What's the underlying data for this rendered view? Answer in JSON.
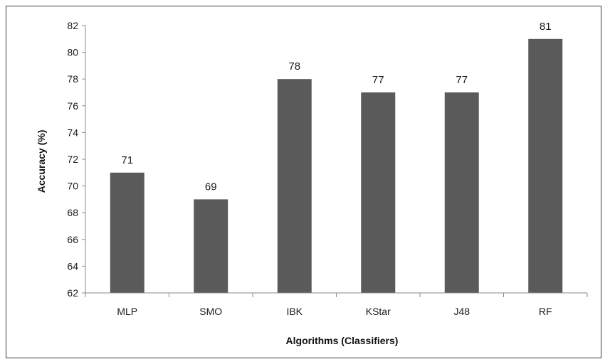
{
  "chart_data": {
    "type": "bar",
    "categories": [
      "MLP",
      "SMO",
      "IBK",
      "KStar",
      "J48",
      "RF"
    ],
    "values": [
      71,
      69,
      78,
      77,
      77,
      81
    ],
    "data_labels": [
      "71",
      "69",
      "78",
      "77",
      "77",
      "81"
    ],
    "xlabel": "Algorithms (Classifiers)",
    "ylabel": "Accuracy  (%)",
    "ylim": [
      62,
      82
    ],
    "yticks": [
      "62",
      "64",
      "66",
      "68",
      "70",
      "72",
      "74",
      "76",
      "78",
      "80",
      "82"
    ],
    "grid": false,
    "legend": "none",
    "bar_color": "#5a5a5a"
  }
}
